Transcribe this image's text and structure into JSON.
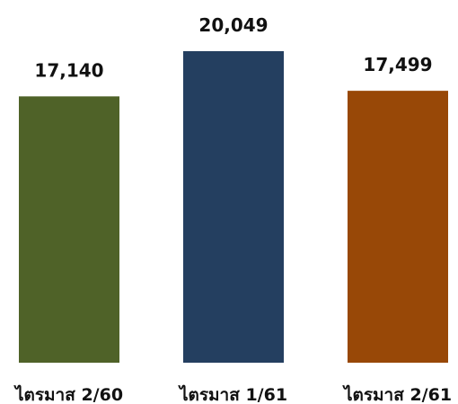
{
  "chart_data": {
    "type": "bar",
    "categories": [
      "ไตรมาส 2/60",
      "ไตรมาส 1/61",
      "ไตรมาส 2/61"
    ],
    "values": [
      17140,
      20049,
      17499
    ],
    "data_labels": [
      "17,140",
      "20,049",
      "17,499"
    ],
    "colors": [
      "#4f6228",
      "#243f60",
      "#984807"
    ],
    "title": "",
    "xlabel": "",
    "ylabel": "",
    "ylim": [
      0,
      20049
    ],
    "grid": false,
    "legend": "none"
  }
}
